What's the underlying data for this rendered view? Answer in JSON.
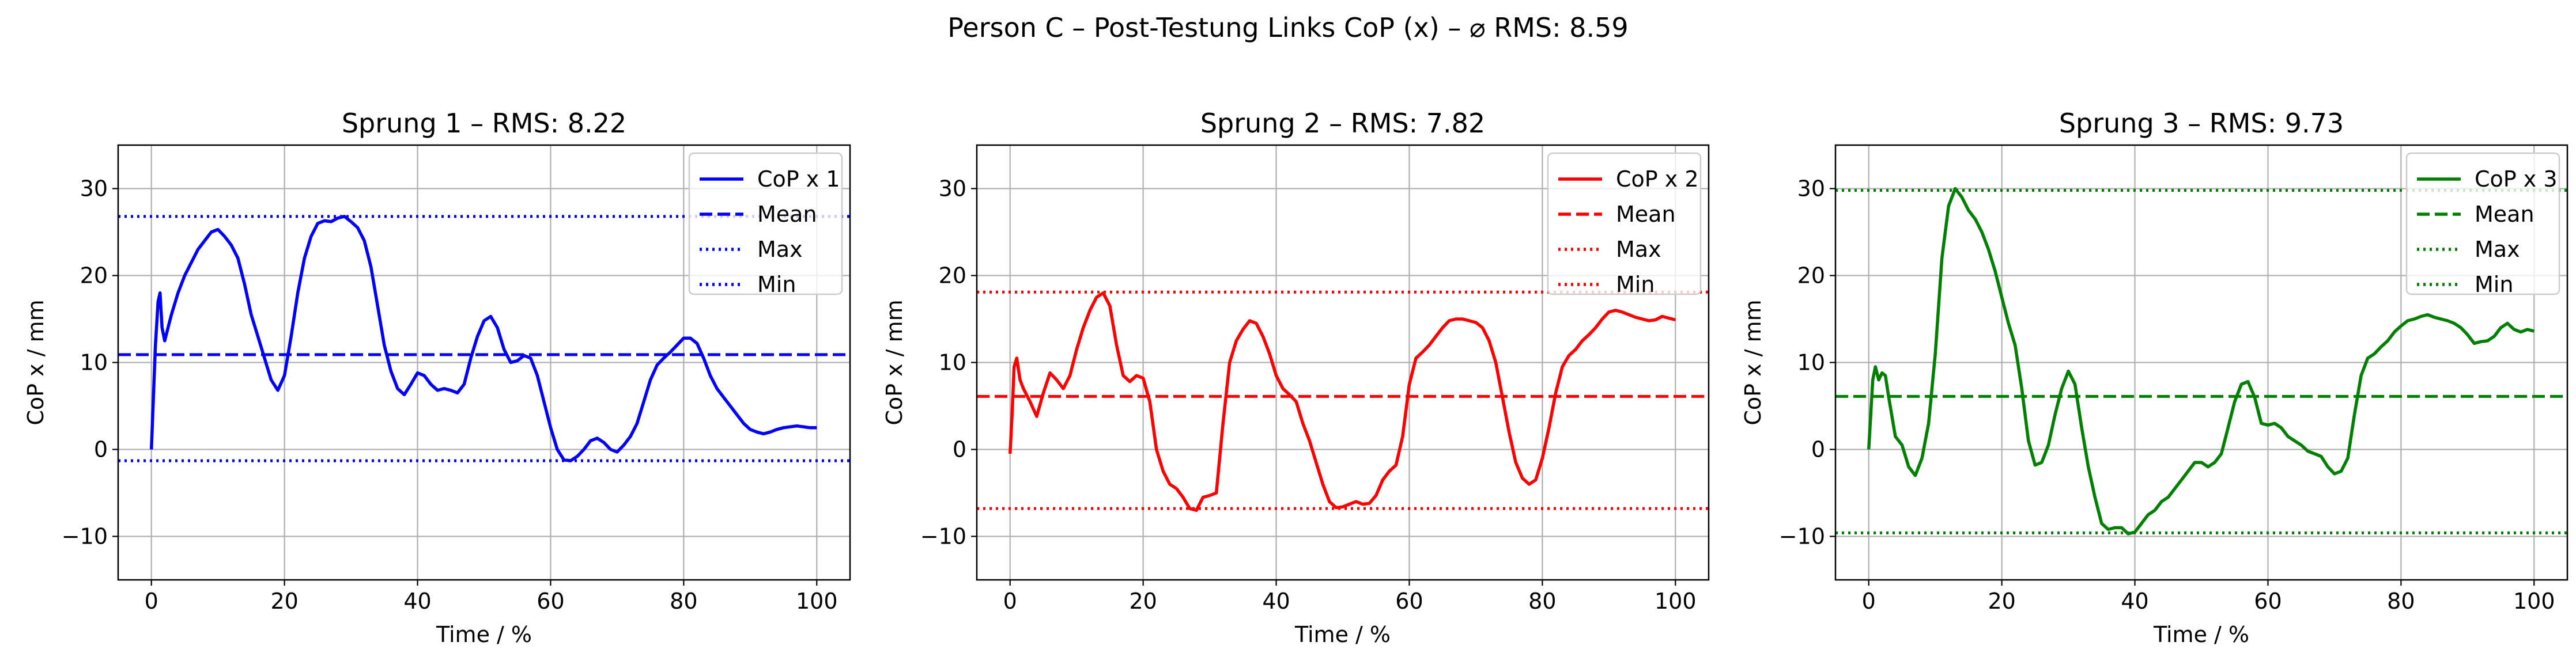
{
  "figure": {
    "suptitle": "Person C – Post-Testung Links CoP (x) – ⌀ RMS: 8.59"
  },
  "chart_data": [
    {
      "type": "line",
      "title": "Sprung 1 – RMS: 8.22",
      "xlabel": "Time / %",
      "ylabel": "CoP x / mm",
      "xlim": [
        -5,
        105
      ],
      "ylim": [
        -15,
        35
      ],
      "xticks": [
        0,
        20,
        40,
        60,
        80,
        100
      ],
      "yticks": [
        -10,
        0,
        10,
        20,
        30
      ],
      "ytick_labels": [
        "−10",
        "0",
        "10",
        "20",
        "30"
      ],
      "grid": true,
      "legend_position": "top-right",
      "color": "#0000ff",
      "series": [
        {
          "name": "CoP x 1",
          "style": "solid",
          "x": [
            0,
            0.3,
            0.6,
            1,
            1.3,
            1.6,
            2,
            2.5,
            3,
            4,
            5,
            6,
            7,
            8,
            9,
            10,
            11,
            12,
            13,
            14,
            15,
            16,
            17,
            18,
            19,
            20,
            21,
            22,
            23,
            24,
            25,
            26,
            27,
            28,
            29,
            30,
            31,
            32,
            33,
            34,
            35,
            36,
            37,
            38,
            39,
            40,
            41,
            42,
            43,
            44,
            45,
            46,
            47,
            48,
            49,
            50,
            51,
            52,
            53,
            54,
            55,
            56,
            57,
            58,
            59,
            60,
            61,
            62,
            63,
            64,
            65,
            66,
            67,
            68,
            69,
            70,
            71,
            72,
            73,
            74,
            75,
            76,
            77,
            78,
            79,
            80,
            81,
            82,
            83,
            84,
            85,
            86,
            87,
            88,
            89,
            90,
            91,
            92,
            93,
            94,
            95,
            96,
            97,
            98,
            99,
            100
          ],
          "y": [
            0,
            6,
            12,
            17,
            18,
            14,
            12.5,
            14,
            15.5,
            18,
            20,
            21.5,
            23,
            24,
            25,
            25.3,
            24.5,
            23.5,
            22,
            19,
            15.5,
            13,
            10.5,
            8,
            6.8,
            8.5,
            13,
            18,
            22,
            24.5,
            26,
            26.3,
            26.2,
            26.6,
            26.8,
            26.2,
            25.5,
            24,
            21,
            16.5,
            12,
            9,
            7,
            6.3,
            7.5,
            8.8,
            8.5,
            7.5,
            6.8,
            7,
            6.8,
            6.5,
            7.5,
            10.5,
            13,
            14.8,
            15.3,
            14,
            11.5,
            10,
            10.2,
            10.8,
            10.5,
            8.5,
            5.5,
            2.5,
            0,
            -1.2,
            -1.3,
            -0.8,
            0,
            1,
            1.3,
            0.8,
            0,
            -0.3,
            0.5,
            1.5,
            3,
            5.5,
            8,
            9.7,
            10.5,
            11.2,
            12,
            12.8,
            12.8,
            12.2,
            10.5,
            8.5,
            7,
            6,
            5,
            4,
            3,
            2.3,
            2,
            1.8,
            2,
            2.3,
            2.5,
            2.6,
            2.7,
            2.6,
            2.5,
            2.5
          ]
        },
        {
          "name": "Mean",
          "style": "dashed",
          "value": 10.9
        },
        {
          "name": "Max",
          "style": "dotted",
          "value": 26.8
        },
        {
          "name": "Min",
          "style": "dotted",
          "value": -1.3
        }
      ]
    },
    {
      "type": "line",
      "title": "Sprung 2 – RMS: 7.82",
      "xlabel": "Time / %",
      "ylabel": "CoP x / mm",
      "xlim": [
        -5,
        105
      ],
      "ylim": [
        -15,
        35
      ],
      "xticks": [
        0,
        20,
        40,
        60,
        80,
        100
      ],
      "yticks": [
        -10,
        0,
        10,
        20,
        30
      ],
      "ytick_labels": [
        "−10",
        "0",
        "10",
        "20",
        "30"
      ],
      "grid": true,
      "legend_position": "top-right",
      "color": "#ff0000",
      "series": [
        {
          "name": "CoP x 2",
          "style": "solid",
          "x": [
            0,
            0.3,
            0.6,
            1,
            1.5,
            2,
            3,
            4,
            5,
            6,
            7,
            8,
            9,
            10,
            11,
            12,
            13,
            14,
            15,
            16,
            17,
            18,
            19,
            20,
            21,
            22,
            23,
            24,
            25,
            26,
            27,
            28,
            29,
            30,
            31,
            32,
            33,
            34,
            35,
            36,
            37,
            38,
            39,
            40,
            41,
            42,
            43,
            44,
            45,
            46,
            47,
            48,
            49,
            50,
            51,
            52,
            53,
            54,
            55,
            56,
            57,
            58,
            59,
            60,
            61,
            62,
            63,
            64,
            65,
            66,
            67,
            68,
            69,
            70,
            71,
            72,
            73,
            74,
            75,
            76,
            77,
            78,
            79,
            80,
            81,
            82,
            83,
            84,
            85,
            86,
            87,
            88,
            89,
            90,
            91,
            92,
            93,
            94,
            95,
            96,
            97,
            98,
            99,
            100
          ],
          "y": [
            -0.5,
            4,
            9.5,
            10.5,
            8,
            7,
            5.5,
            3.8,
            6.5,
            8.8,
            8,
            7,
            8.5,
            11.5,
            14,
            16,
            17.5,
            18,
            16.5,
            12,
            8.5,
            7.8,
            8.5,
            8.2,
            5.5,
            0,
            -2.5,
            -4,
            -4.5,
            -5.5,
            -6.8,
            -7,
            -5.5,
            -5.3,
            -5,
            3,
            10,
            12.5,
            13.8,
            14.8,
            14.5,
            13,
            11,
            8.5,
            7,
            6.3,
            5.5,
            3,
            1,
            -1.5,
            -4,
            -6,
            -6.7,
            -6.6,
            -6.3,
            -6,
            -6.3,
            -6.2,
            -5.3,
            -3.5,
            -2.5,
            -1.8,
            1.5,
            7.5,
            10.5,
            11.2,
            12,
            13,
            14,
            14.8,
            15,
            15,
            14.8,
            14.6,
            14,
            12.5,
            10,
            6,
            2,
            -1.5,
            -3.3,
            -4,
            -3.5,
            -1,
            2.5,
            6.5,
            9.5,
            10.8,
            11.5,
            12.5,
            13.2,
            14,
            15,
            15.8,
            16,
            15.8,
            15.5,
            15.2,
            15,
            14.8,
            14.9,
            15.3,
            15.1,
            14.9
          ]
        },
        {
          "name": "Mean",
          "style": "dashed",
          "value": 6.1
        },
        {
          "name": "Max",
          "style": "dotted",
          "value": 18.1
        },
        {
          "name": "Min",
          "style": "dotted",
          "value": -6.8
        }
      ]
    },
    {
      "type": "line",
      "title": "Sprung 3 – RMS: 9.73",
      "xlabel": "Time / %",
      "ylabel": "CoP x / mm",
      "xlim": [
        -5,
        105
      ],
      "ylim": [
        -15,
        35
      ],
      "xticks": [
        0,
        20,
        40,
        60,
        80,
        100
      ],
      "yticks": [
        -10,
        0,
        10,
        20,
        30
      ],
      "ytick_labels": [
        "−10",
        "0",
        "10",
        "20",
        "30"
      ],
      "grid": true,
      "legend_position": "top-right",
      "color": "#008000",
      "series": [
        {
          "name": "CoP x 3",
          "style": "solid",
          "x": [
            0,
            0.3,
            0.6,
            1,
            1.5,
            2,
            2.5,
            3,
            4,
            5,
            6,
            7,
            8,
            9,
            10,
            11,
            12,
            13,
            14,
            15,
            16,
            17,
            18,
            19,
            20,
            21,
            22,
            23,
            24,
            25,
            26,
            27,
            28,
            29,
            30,
            31,
            32,
            33,
            34,
            35,
            36,
            37,
            38,
            39,
            40,
            41,
            42,
            43,
            44,
            45,
            46,
            47,
            48,
            49,
            50,
            51,
            52,
            53,
            54,
            55,
            56,
            57,
            58,
            59,
            60,
            61,
            62,
            63,
            64,
            65,
            66,
            67,
            68,
            69,
            70,
            71,
            72,
            73,
            74,
            75,
            76,
            77,
            78,
            79,
            80,
            81,
            82,
            83,
            84,
            85,
            86,
            87,
            88,
            89,
            90,
            91,
            92,
            93,
            94,
            95,
            96,
            97,
            98,
            99,
            100
          ],
          "y": [
            0,
            4,
            8,
            9.5,
            8,
            8.8,
            8.5,
            6,
            1.5,
            0.5,
            -2,
            -3,
            -1,
            3,
            11,
            22,
            28,
            30,
            29,
            27.5,
            26.5,
            25,
            23,
            20.5,
            17.5,
            14.5,
            12,
            7,
            1,
            -1.8,
            -1.5,
            0.5,
            4,
            7,
            9,
            7.5,
            2.5,
            -2,
            -5.5,
            -8.5,
            -9.2,
            -9,
            -9,
            -9.7,
            -9.5,
            -8.5,
            -7.5,
            -7,
            -6,
            -5.5,
            -4.5,
            -3.5,
            -2.5,
            -1.5,
            -1.5,
            -2,
            -1.5,
            -0.5,
            2.5,
            5.5,
            7.5,
            7.8,
            6,
            3,
            2.8,
            3,
            2.5,
            1.5,
            1,
            0.5,
            -0.2,
            -0.5,
            -0.8,
            -2,
            -2.8,
            -2.5,
            -1,
            4,
            8.5,
            10.5,
            11,
            11.8,
            12.5,
            13.5,
            14.2,
            14.8,
            15,
            15.3,
            15.5,
            15.2,
            15,
            14.8,
            14.5,
            14,
            13.2,
            12.2,
            12.4,
            12.5,
            13,
            14,
            14.5,
            13.8,
            13.5,
            13.8,
            13.6
          ]
        },
        {
          "name": "Mean",
          "style": "dashed",
          "value": 6.1
        },
        {
          "name": "Max",
          "style": "dotted",
          "value": 29.8
        },
        {
          "name": "Min",
          "style": "dotted",
          "value": -9.6
        }
      ]
    }
  ]
}
